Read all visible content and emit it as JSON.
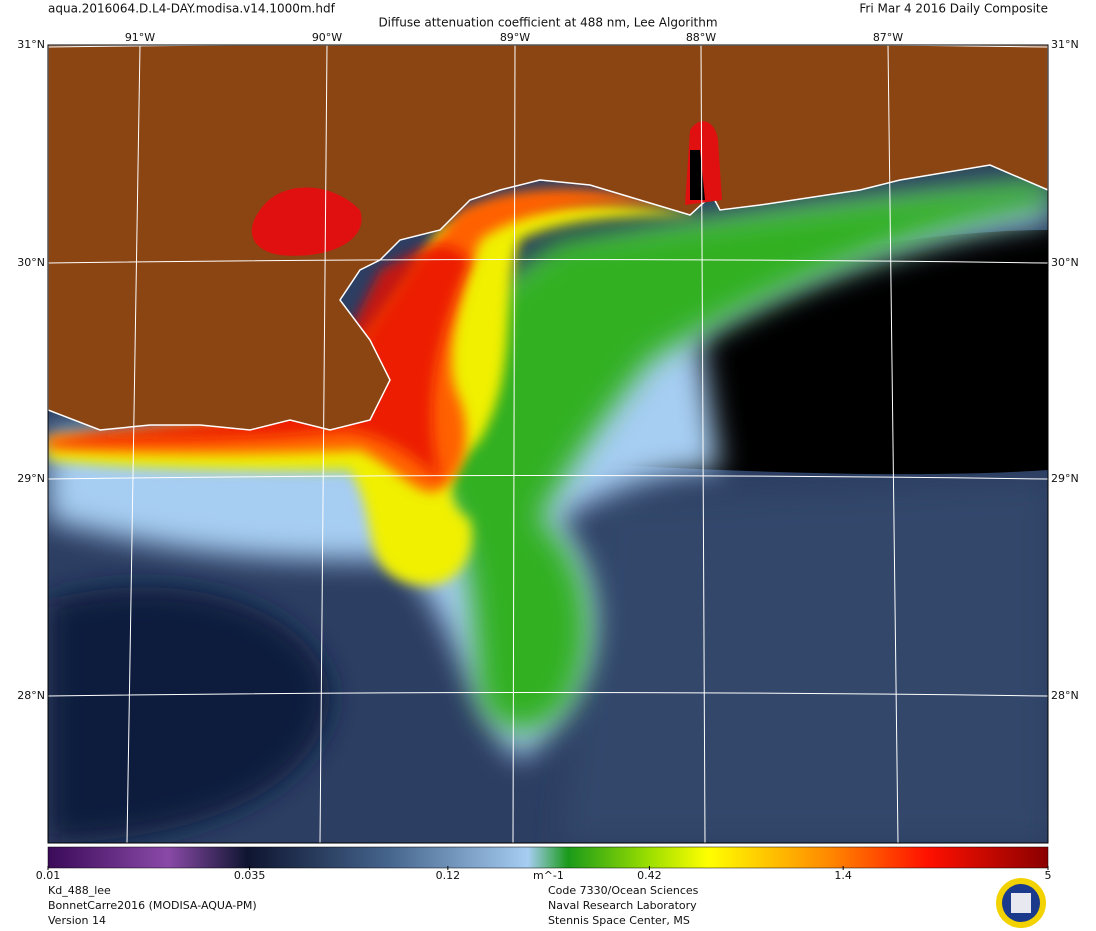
{
  "header": {
    "filename": "aqua.2016064.D.L4-DAY.modisa.v14.1000m.hdf",
    "title": "Diffuse attenuation coefficient at 488 nm, Lee Algorithm",
    "date": "Fri Mar  4 2016 Daily Composite"
  },
  "map": {
    "lat_labels": [
      "31°N",
      "30°N",
      "29°N",
      "28°N"
    ],
    "lon_labels": [
      "91°W",
      "90°W",
      "89°W",
      "88°W",
      "87°W"
    ]
  },
  "colorbar": {
    "range": [
      0.01,
      5
    ],
    "log_scale": true,
    "ticks": [
      0.01,
      0.035,
      0.12,
      0.42,
      1.4,
      5
    ],
    "unit": "m^-1"
  },
  "footer": {
    "left": [
      "Kd_488_lee",
      "BonnetCarre2016 (MODISA-AQUA-PM)",
      "Version 14"
    ],
    "right": [
      "Code 7330/Ocean Sciences",
      "Naval Research Laboratory",
      "Stennis Space Center, MS"
    ]
  }
}
